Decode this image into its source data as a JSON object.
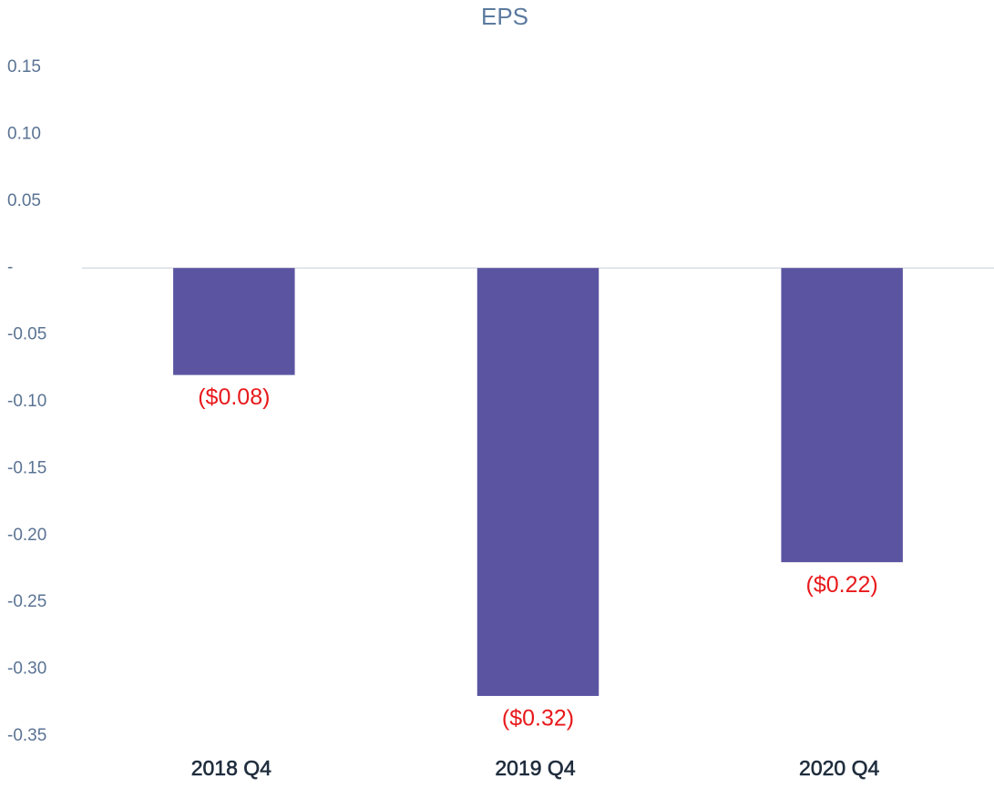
{
  "chart_data": {
    "type": "bar",
    "title": "EPS",
    "categories": [
      "2018 Q4",
      "2019 Q4",
      "2020 Q4"
    ],
    "values": [
      -0.08,
      -0.32,
      -0.22
    ],
    "value_labels": [
      "($0.08)",
      "($0.32)",
      "($0.22)"
    ],
    "color": "#5b55a1",
    "ylim": [
      -0.35,
      0.15
    ],
    "yticks": [
      0.15,
      {
        "value": 0.1,
        "label": "0.10"
      },
      0.05,
      {
        "value": 0,
        "label": "-"
      },
      -0.05,
      {
        "value": -0.1,
        "label": "-0.10"
      },
      -0.15,
      {
        "value": -0.2,
        "label": "-0.20"
      },
      -0.25,
      {
        "value": -0.3,
        "label": "-0.30"
      },
      -0.35
    ],
    "grid": false
  }
}
